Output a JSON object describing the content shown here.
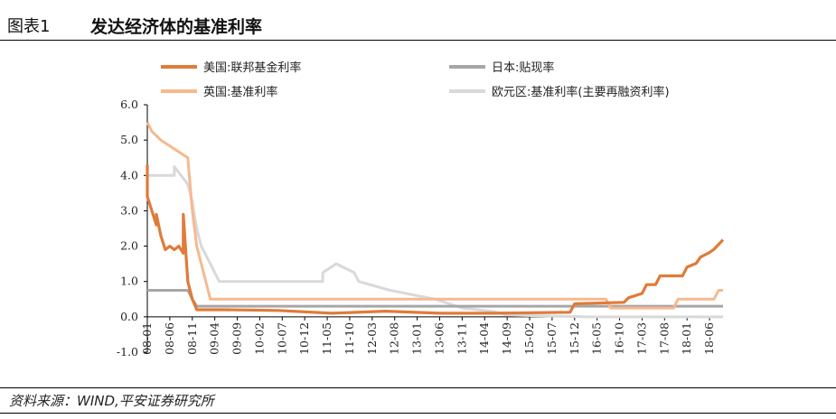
{
  "header": {
    "figure_number": "图表1",
    "title": "发达经济体的基准利率"
  },
  "footer": {
    "source": "资料来源：WIND,平安证券研究所"
  },
  "chart_data": {
    "type": "line",
    "title": "发达经济体的基准利率",
    "xlabel": "",
    "ylabel": "",
    "ylim": [
      -1.0,
      6.0
    ],
    "yticks": [
      "6.0",
      "5.0",
      "4.0",
      "3.0",
      "2.0",
      "1.0",
      "0.0",
      "-1.0"
    ],
    "xticks": [
      "08-01",
      "08-06",
      "08-11",
      "09-04",
      "09-09",
      "10-02",
      "10-07",
      "10-12",
      "11-05",
      "11-10",
      "12-03",
      "12-08",
      "13-01",
      "13-06",
      "13-11",
      "14-04",
      "14-09",
      "15-02",
      "15-07",
      "15-12",
      "16-05",
      "16-10",
      "17-03",
      "17-08",
      "18-01",
      "18-06"
    ],
    "x_range": [
      "2008-01",
      "2018-09"
    ],
    "grid": false,
    "legend_position": "top",
    "series": [
      {
        "name": "美国:联邦基金利率",
        "color": "#e07b39",
        "points": [
          [
            "2008-01",
            4.3
          ],
          [
            "2008-01",
            3.4
          ],
          [
            "2008-02",
            3.0
          ],
          [
            "2008-03",
            2.6
          ],
          [
            "2008-03",
            2.9
          ],
          [
            "2008-04",
            2.3
          ],
          [
            "2008-05",
            1.9
          ],
          [
            "2008-06",
            2.0
          ],
          [
            "2008-07",
            1.9
          ],
          [
            "2008-08",
            2.0
          ],
          [
            "2008-09",
            1.8
          ],
          [
            "2008-09",
            2.9
          ],
          [
            "2008-10",
            1.0
          ],
          [
            "2008-11",
            0.5
          ],
          [
            "2008-12",
            0.2
          ],
          [
            "2009-06",
            0.2
          ],
          [
            "2010-06",
            0.18
          ],
          [
            "2011-06",
            0.1
          ],
          [
            "2012-06",
            0.16
          ],
          [
            "2013-06",
            0.1
          ],
          [
            "2014-06",
            0.1
          ],
          [
            "2015-11",
            0.13
          ],
          [
            "2015-12",
            0.37
          ],
          [
            "2016-11",
            0.41
          ],
          [
            "2016-12",
            0.54
          ],
          [
            "2017-03",
            0.66
          ],
          [
            "2017-04",
            0.91
          ],
          [
            "2017-06",
            0.91
          ],
          [
            "2017-07",
            1.16
          ],
          [
            "2017-12",
            1.16
          ],
          [
            "2018-01",
            1.41
          ],
          [
            "2018-03",
            1.51
          ],
          [
            "2018-04",
            1.69
          ],
          [
            "2018-06",
            1.82
          ],
          [
            "2018-07",
            1.91
          ],
          [
            "2018-09",
            2.18
          ]
        ]
      },
      {
        "name": "日本:贴现率",
        "color": "#a6a6a6",
        "points": [
          [
            "2008-01",
            0.75
          ],
          [
            "2008-10",
            0.75
          ],
          [
            "2008-11",
            0.5
          ],
          [
            "2008-12",
            0.3
          ],
          [
            "2018-09",
            0.3
          ]
        ]
      },
      {
        "name": "英国:基准利率",
        "color": "#f5b98e",
        "points": [
          [
            "2008-01",
            5.5
          ],
          [
            "2008-02",
            5.25
          ],
          [
            "2008-04",
            5.0
          ],
          [
            "2008-10",
            4.5
          ],
          [
            "2008-11",
            3.0
          ],
          [
            "2008-12",
            2.0
          ],
          [
            "2009-01",
            1.5
          ],
          [
            "2009-02",
            1.0
          ],
          [
            "2009-03",
            0.5
          ],
          [
            "2016-07",
            0.5
          ],
          [
            "2016-08",
            0.25
          ],
          [
            "2017-10",
            0.25
          ],
          [
            "2017-11",
            0.5
          ],
          [
            "2018-07",
            0.5
          ],
          [
            "2018-08",
            0.75
          ],
          [
            "2018-09",
            0.75
          ]
        ]
      },
      {
        "name": "欧元区:基准利率(主要再融资利率)",
        "color": "#d9d9d9",
        "points": [
          [
            "2008-01",
            4.0
          ],
          [
            "2008-07",
            4.0
          ],
          [
            "2008-07",
            4.25
          ],
          [
            "2008-10",
            3.75
          ],
          [
            "2008-11",
            3.25
          ],
          [
            "2008-12",
            2.5
          ],
          [
            "2009-01",
            2.0
          ],
          [
            "2009-03",
            1.5
          ],
          [
            "2009-04",
            1.25
          ],
          [
            "2009-05",
            1.0
          ],
          [
            "2011-04",
            1.0
          ],
          [
            "2011-04",
            1.25
          ],
          [
            "2011-07",
            1.5
          ],
          [
            "2011-11",
            1.25
          ],
          [
            "2011-12",
            1.0
          ],
          [
            "2012-07",
            0.75
          ],
          [
            "2013-05",
            0.5
          ],
          [
            "2013-11",
            0.25
          ],
          [
            "2014-06",
            0.15
          ],
          [
            "2014-09",
            0.05
          ],
          [
            "2016-03",
            0.0
          ],
          [
            "2018-09",
            0.0
          ]
        ]
      }
    ]
  }
}
